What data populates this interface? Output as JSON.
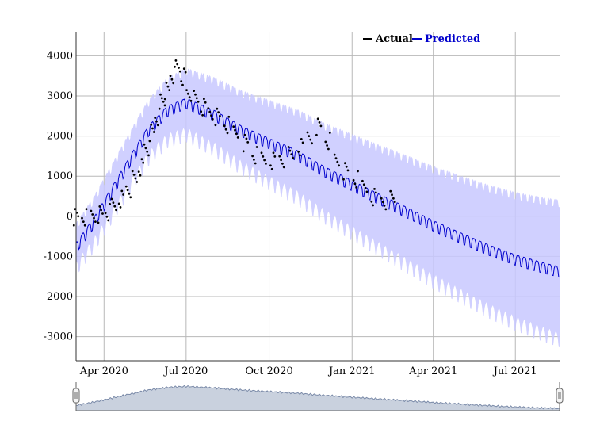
{
  "chart_data": {
    "type": "line",
    "title": "",
    "xlabel": "",
    "ylabel": "",
    "xlim": [
      "2020-03-01",
      "2021-08-19"
    ],
    "ylim": [
      -3600,
      4600
    ],
    "y_ticks": [
      4000,
      3000,
      2000,
      1000,
      0,
      -1000,
      -2000,
      -3000
    ],
    "x_ticks": [
      {
        "date": "2020-04-01",
        "label": "Apr 2020"
      },
      {
        "date": "2020-07-01",
        "label": "Jul 2020"
      },
      {
        "date": "2020-10-01",
        "label": "Oct 2020"
      },
      {
        "date": "2021-01-01",
        "label": "Jan 2021"
      },
      {
        "date": "2021-04-01",
        "label": "Apr 2021"
      },
      {
        "date": "2021-07-01",
        "label": "Jul 2021"
      }
    ],
    "grid": true,
    "legend": {
      "placement": "top-right",
      "entries": [
        {
          "name": "Actual",
          "color": "#000000"
        },
        {
          "name": "Predicted",
          "color": "#0000cc"
        }
      ]
    },
    "series": [
      {
        "name": "Actual",
        "kind": "scatter",
        "color": "#000000",
        "points": [
          [
            "2020-03-01",
            0
          ],
          [
            "2020-03-10",
            0
          ],
          [
            "2020-03-20",
            0
          ],
          [
            "2020-03-28",
            20
          ],
          [
            "2020-04-05",
            80
          ],
          [
            "2020-04-12",
            250
          ],
          [
            "2020-04-20",
            450
          ],
          [
            "2020-04-28",
            700
          ],
          [
            "2020-05-05",
            900
          ],
          [
            "2020-05-12",
            1200
          ],
          [
            "2020-05-18",
            1700
          ],
          [
            "2020-05-24",
            2100
          ],
          [
            "2020-05-30",
            2500
          ],
          [
            "2020-06-05",
            2900
          ],
          [
            "2020-06-10",
            3100
          ],
          [
            "2020-06-16",
            3500
          ],
          [
            "2020-06-22",
            3700
          ],
          [
            "2020-06-28",
            3500
          ],
          [
            "2020-07-04",
            3100
          ],
          [
            "2020-07-12",
            2900
          ],
          [
            "2020-07-20",
            2700
          ],
          [
            "2020-07-28",
            2600
          ],
          [
            "2020-08-05",
            2500
          ],
          [
            "2020-08-15",
            2300
          ],
          [
            "2020-08-25",
            2100
          ],
          [
            "2020-09-05",
            1800
          ],
          [
            "2020-09-15",
            1500
          ],
          [
            "2020-09-25",
            1400
          ],
          [
            "2020-10-05",
            1400
          ],
          [
            "2020-10-15",
            1450
          ],
          [
            "2020-10-25",
            1500
          ],
          [
            "2020-11-05",
            1700
          ],
          [
            "2020-11-15",
            2000
          ],
          [
            "2020-11-25",
            2250
          ],
          [
            "2020-12-05",
            1900
          ],
          [
            "2020-12-15",
            1400
          ],
          [
            "2020-12-25",
            1100
          ],
          [
            "2021-01-05",
            900
          ],
          [
            "2021-01-15",
            700
          ],
          [
            "2021-01-25",
            500
          ],
          [
            "2021-02-05",
            400
          ],
          [
            "2021-02-15",
            400
          ]
        ]
      },
      {
        "name": "Predicted",
        "kind": "line",
        "color": "#0000cc",
        "points": [
          [
            "2020-03-01",
            -700
          ],
          [
            "2020-03-20",
            -100
          ],
          [
            "2020-04-10",
            700
          ],
          [
            "2020-05-01",
            1500
          ],
          [
            "2020-05-20",
            2200
          ],
          [
            "2020-06-10",
            2700
          ],
          [
            "2020-07-01",
            2900
          ],
          [
            "2020-08-01",
            2600
          ],
          [
            "2020-09-01",
            2200
          ],
          [
            "2020-10-01",
            1900
          ],
          [
            "2020-11-01",
            1600
          ],
          [
            "2020-12-01",
            1200
          ],
          [
            "2021-01-01",
            850
          ],
          [
            "2021-02-01",
            500
          ],
          [
            "2021-03-01",
            200
          ],
          [
            "2021-04-01",
            -150
          ],
          [
            "2021-05-01",
            -450
          ],
          [
            "2021-06-01",
            -750
          ],
          [
            "2021-07-01",
            -1000
          ],
          [
            "2021-08-01",
            -1200
          ],
          [
            "2021-08-19",
            -1300
          ]
        ],
        "band": {
          "color": "#c8c8ff"
        }
      }
    ]
  },
  "navigator": {
    "handle_left": "start",
    "handle_right": "end"
  }
}
